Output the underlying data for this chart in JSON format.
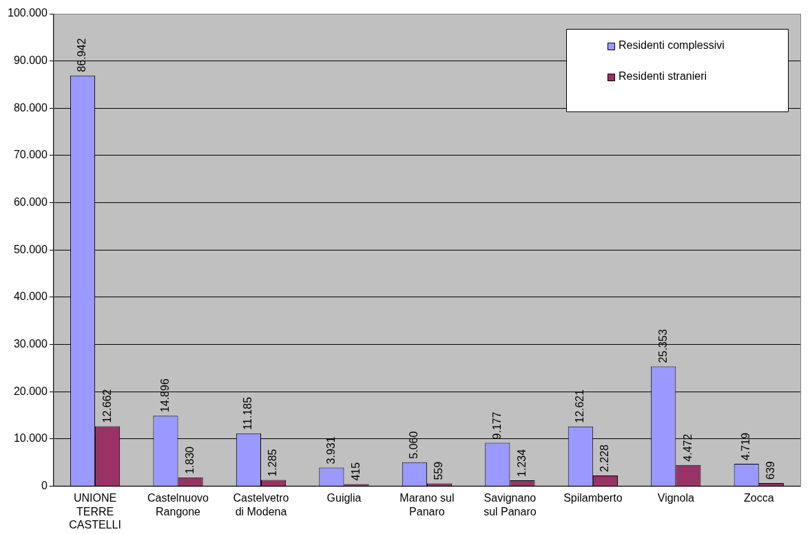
{
  "chart_data": {
    "type": "bar",
    "categories": [
      "UNIONE TERRE CASTELLI",
      "Castelnuovo Rangone",
      "Castelvetro di Modena",
      "Guiglia",
      "Marano sul Panaro",
      "Savignano sul Panaro",
      "Spilamberto",
      "Vignola",
      "Zocca"
    ],
    "series": [
      {
        "name": "Residenti complessivi",
        "color": "#9999ff",
        "values": [
          86942,
          14896,
          11185,
          3931,
          5060,
          9177,
          12621,
          25353,
          4719
        ],
        "value_labels": [
          "86.942",
          "14.896",
          "11.185",
          "3.931",
          "5.060",
          "9.177",
          "12.621",
          "25.353",
          "4.719"
        ]
      },
      {
        "name": "Residenti stranieri",
        "color": "#993366",
        "values": [
          12662,
          1830,
          1285,
          415,
          559,
          1234,
          2228,
          4472,
          639
        ],
        "value_labels": [
          "12.662",
          "1.830",
          "1.285",
          "415",
          "559",
          "1.234",
          "2.228",
          "4.472",
          "639"
        ]
      }
    ],
    "ylim": [
      0,
      100000
    ],
    "yticks": [
      {
        "value": 0,
        "label": "0"
      },
      {
        "value": 10000,
        "label": "10.000"
      },
      {
        "value": 20000,
        "label": "20.000"
      },
      {
        "value": 30000,
        "label": "30.000"
      },
      {
        "value": 40000,
        "label": "40.000"
      },
      {
        "value": 50000,
        "label": "50.000"
      },
      {
        "value": 60000,
        "label": "60.000"
      },
      {
        "value": 70000,
        "label": "70.000"
      },
      {
        "value": 80000,
        "label": "80.000"
      },
      {
        "value": 90000,
        "label": "90.000"
      },
      {
        "value": 100000,
        "label": "100.000"
      }
    ],
    "grid": "y",
    "legend": "top right"
  }
}
